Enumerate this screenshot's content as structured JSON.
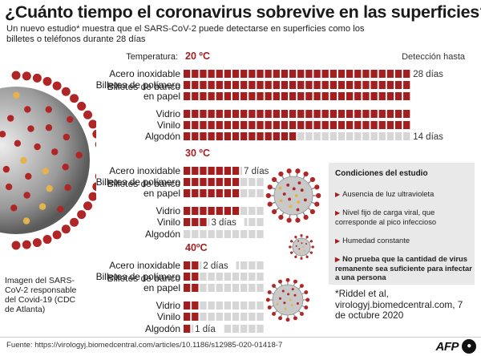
{
  "title": "¿Cuánto tiempo el coronavirus sobrevive en las superficies?",
  "subtitle": "Un nuevo estudio* muestra que el SARS-CoV-2  puede detectarse en superficies como los billetes o teléfonos durante 28 días",
  "header": {
    "temperature_label": "Temperatura:",
    "detection_label": "Detección hasta"
  },
  "chart_data": {
    "type": "bar",
    "unit": "días",
    "max_days": 28,
    "panels": [
      {
        "temperature": "20 ºC",
        "categories": [
          "Acero inoxidable",
          "Billetes de polímero",
          "Billetes de banco en papel",
          "Vidrio",
          "Vinilo",
          "Algodón"
        ],
        "values": [
          28,
          28,
          28,
          28,
          28,
          14
        ],
        "annotations": [
          "28 días",
          "",
          "",
          "",
          "",
          "14 días"
        ]
      },
      {
        "temperature": "30 ºC",
        "categories": [
          "Acero inoxidable",
          "Billetes de polímero",
          "Billetes de banco en papel",
          "Vidrio",
          "Vinilo",
          "Algodón"
        ],
        "values": [
          7,
          7,
          7,
          7,
          3,
          0
        ],
        "annotations": [
          "7 días",
          "",
          "",
          "",
          "3 días",
          ""
        ]
      },
      {
        "temperature": "40ºC",
        "categories": [
          "Acero inoxidable",
          "Billetes de polímero",
          "Billetes de banco en papel",
          "Vidrio",
          "Vinilo",
          "Algodón"
        ],
        "values": [
          2,
          2,
          2,
          2,
          2,
          1
        ],
        "annotations": [
          "2 días",
          "",
          "",
          "",
          "",
          "1 día"
        ]
      }
    ]
  },
  "conditions": {
    "title": "Condiciones del estudio",
    "items": [
      "Ausencia de luz ultravioleta",
      "Nivel fijo de carga viral, que corresponde al pico infeccioso",
      "Humedad constante",
      "No prueba que la cantidad de virus remanente sea suficiente para infectar a una persona"
    ]
  },
  "image_caption": "Imagen del SARS-CoV-2 responsable del Covid-19 (CDC de Atlanta)",
  "reference": "*Riddel et al, virologyj.biomedcentral.com, 7 de octubre 2020",
  "source": "Fuente: https://virologyj.biomedcentral.com/articles/10.1186/s12985-020-01418-7",
  "logo": {
    "text": "AFP"
  },
  "colors": {
    "bar_filled": "#a31f1f",
    "bar_empty": "#d6d6d6",
    "temperature": "#a31f1f",
    "virus_spike": "#b02525",
    "virus_body": "#c9c9c9"
  }
}
